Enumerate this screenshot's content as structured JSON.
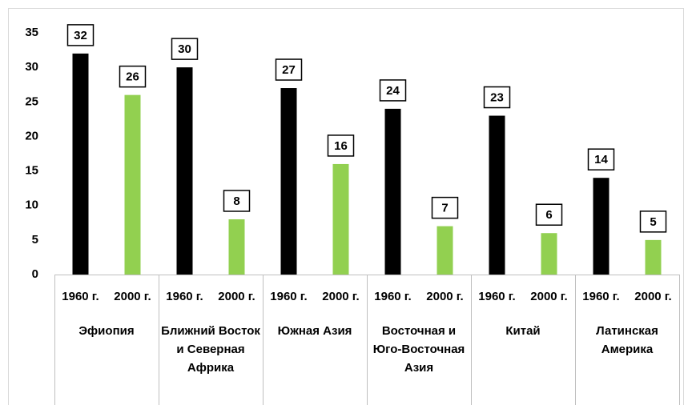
{
  "chart_data": {
    "type": "bar",
    "categories": [
      "Эфиопия",
      "Ближний Восток и Северная Африка",
      "Южная Азия",
      "Восточная и Юго-Восточная Азия",
      "Китай",
      "Латинская Америка"
    ],
    "series": [
      {
        "name": "1960 г.",
        "color": "#000000",
        "values": [
          32,
          30,
          27,
          24,
          23,
          14
        ]
      },
      {
        "name": "2000 г.",
        "color": "#92d050",
        "values": [
          26,
          8,
          16,
          7,
          6,
          5
        ]
      }
    ],
    "ylim": [
      0,
      35
    ],
    "yticks": [
      0,
      5,
      10,
      15,
      20,
      25,
      30,
      35
    ],
    "grid": false
  }
}
